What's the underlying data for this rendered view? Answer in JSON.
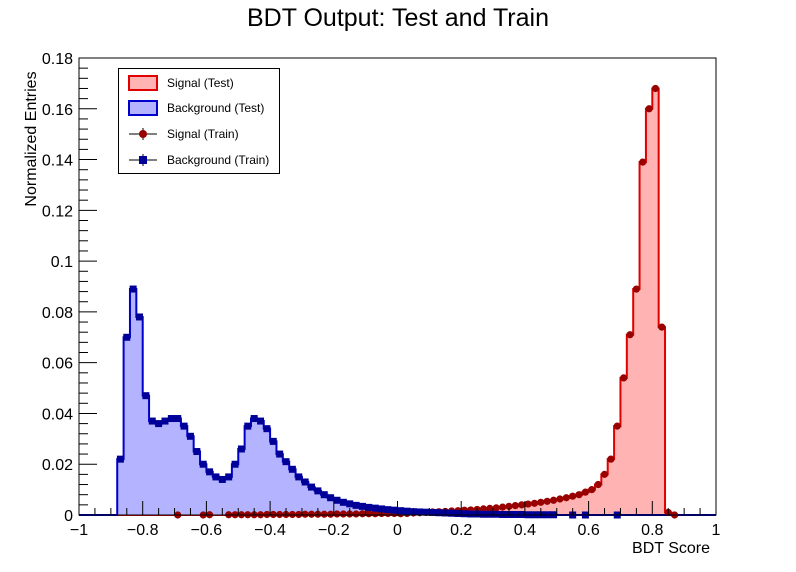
{
  "chart_data": {
    "type": "bar",
    "title": "BDT Output: Test and Train",
    "xlabel": "BDT Score",
    "ylabel": "Normalized Entries",
    "xlim": [
      -1,
      1
    ],
    "ylim": [
      0,
      0.18
    ],
    "x_ticks": [
      "−1",
      "−0.8",
      "−0.6",
      "−0.4",
      "−0.2",
      "0",
      "0.2",
      "0.4",
      "0.6",
      "0.8",
      "1"
    ],
    "y_ticks": [
      "0",
      "0.02",
      "0.04",
      "0.06",
      "0.08",
      "0.1",
      "0.12",
      "0.14",
      "0.16",
      "0.18"
    ],
    "legend_position": "top-left",
    "bins": {
      "count": 100,
      "min": -1,
      "max": 1
    },
    "series": [
      {
        "name": "Signal (Test)",
        "kind": "histogram",
        "fill": "#ffb3b3",
        "line": "#e00000",
        "values": [
          0,
          0,
          0,
          0,
          0,
          0,
          0,
          0,
          0,
          0,
          0,
          0,
          0,
          0,
          0,
          0,
          0,
          0,
          0,
          0,
          0,
          0,
          0,
          0,
          0,
          0,
          0,
          0,
          0,
          0,
          0,
          0,
          0,
          0,
          0,
          0,
          0,
          0,
          0,
          0,
          0,
          0,
          0,
          0,
          0,
          0,
          0,
          0,
          0,
          0,
          0.0005,
          0.0006,
          0.0008,
          0.0009,
          0.001,
          0.0012,
          0.0013,
          0.0014,
          0.0016,
          0.0017,
          0.0019,
          0.002,
          0.0022,
          0.0024,
          0.0026,
          0.0028,
          0.0031,
          0.0034,
          0.0037,
          0.004,
          0.0043,
          0.0046,
          0.005,
          0.0054,
          0.0058,
          0.0063,
          0.0068,
          0.0074,
          0.008,
          0.009,
          0.01,
          0.012,
          0.016,
          0.022,
          0.035,
          0.054,
          0.071,
          0.089,
          0.139,
          0.16,
          0.168,
          0.074,
          0.001,
          0,
          0,
          0,
          0,
          0,
          0,
          0
        ]
      },
      {
        "name": "Background (Test)",
        "kind": "histogram",
        "fill": "#b3b3ff",
        "line": "#0000cc",
        "values": [
          0,
          0,
          0,
          0,
          0,
          0,
          0.022,
          0.07,
          0.089,
          0.078,
          0.047,
          0.037,
          0.036,
          0.037,
          0.038,
          0.038,
          0.035,
          0.031,
          0.025,
          0.02,
          0.017,
          0.015,
          0.014,
          0.015,
          0.02,
          0.026,
          0.035,
          0.038,
          0.037,
          0.034,
          0.029,
          0.024,
          0.021,
          0.018,
          0.015,
          0.013,
          0.011,
          0.0095,
          0.008,
          0.0068,
          0.0058,
          0.005,
          0.0044,
          0.0038,
          0.0034,
          0.003,
          0.0027,
          0.0024,
          0.0021,
          0.0019,
          0.0017,
          0.0015,
          0.0013,
          0.0012,
          0.0011,
          0.001,
          0.0009,
          0.0008,
          0.0007,
          0.0006,
          0.0005,
          0.0004,
          0.0004,
          0.0003,
          0.0003,
          0.0003,
          0.0002,
          0.0002,
          0.0002,
          0.0002,
          0.0001,
          0.0001,
          0.0001,
          0.0001,
          0.0001,
          0,
          0,
          0,
          0,
          0,
          0,
          0,
          0,
          0,
          0,
          0,
          0,
          0,
          0,
          0,
          0,
          0,
          0,
          0,
          0,
          0,
          0,
          0,
          0,
          0
        ]
      },
      {
        "name": "Signal (Train)",
        "kind": "points",
        "marker": "circle",
        "color": "#990000",
        "values": [
          null,
          null,
          null,
          null,
          null,
          null,
          null,
          null,
          null,
          null,
          null,
          null,
          null,
          null,
          null,
          0,
          null,
          null,
          null,
          0,
          0.0001,
          null,
          null,
          0.0001,
          0.0001,
          0.0001,
          0.0001,
          0.0001,
          0.0001,
          0.0002,
          0.0002,
          0.0002,
          0.0002,
          0.0002,
          0.0002,
          0.0003,
          0.0003,
          0.0003,
          0.0003,
          0.0003,
          0.0004,
          0.0004,
          0.0004,
          0.0004,
          0.0005,
          0.0005,
          0.0005,
          0.0006,
          0.0006,
          0.0006,
          0.0005,
          0.0006,
          0.0008,
          0.0009,
          0.001,
          0.0012,
          0.0013,
          0.0014,
          0.0016,
          0.0017,
          0.0019,
          0.002,
          0.0022,
          0.0024,
          0.0026,
          0.0028,
          0.0031,
          0.0034,
          0.0037,
          0.004,
          0.0043,
          0.0046,
          0.005,
          0.0054,
          0.0058,
          0.0063,
          0.0068,
          0.0074,
          0.008,
          0.009,
          0.01,
          0.012,
          0.016,
          0.022,
          0.035,
          0.054,
          0.071,
          0.089,
          0.139,
          0.16,
          0.168,
          0.074,
          0.001,
          0,
          null,
          null,
          null,
          null,
          null,
          null
        ]
      },
      {
        "name": "Background (Train)",
        "kind": "points",
        "marker": "square",
        "color": "#000099",
        "values": [
          null,
          null,
          null,
          null,
          null,
          null,
          0.022,
          0.07,
          0.089,
          0.078,
          0.047,
          0.037,
          0.036,
          0.037,
          0.038,
          0.038,
          0.035,
          0.031,
          0.025,
          0.02,
          0.017,
          0.015,
          0.014,
          0.015,
          0.02,
          0.026,
          0.035,
          0.038,
          0.037,
          0.034,
          0.029,
          0.024,
          0.021,
          0.018,
          0.015,
          0.013,
          0.011,
          0.0095,
          0.008,
          0.0068,
          0.0058,
          0.005,
          0.0044,
          0.0038,
          0.0034,
          0.003,
          0.0027,
          0.0024,
          0.0021,
          0.0019,
          0.0017,
          0.0015,
          0.0013,
          0.0012,
          0.0011,
          0.001,
          0.0009,
          0.0008,
          0.0007,
          0.0006,
          0.0005,
          0.0004,
          0.0004,
          0.0003,
          0.0003,
          0.0003,
          0.0002,
          0.0002,
          0.0002,
          0.0002,
          0.0001,
          0.0001,
          0.0001,
          0.0001,
          0.0001,
          null,
          null,
          0,
          null,
          0,
          null,
          null,
          null,
          null,
          0,
          null,
          null,
          null,
          null,
          null,
          null,
          null,
          null,
          null,
          null,
          null,
          null,
          null,
          null,
          null
        ]
      }
    ]
  },
  "legend": [
    {
      "label": "Signal (Test)",
      "kind": "fill",
      "fill": "#ffb3b3",
      "line": "#e00000"
    },
    {
      "label": "Background (Test)",
      "kind": "fill",
      "fill": "#b3b3ff",
      "line": "#0000cc"
    },
    {
      "label": "Signal (Train)",
      "kind": "marker",
      "marker": "circle",
      "color": "#990000"
    },
    {
      "label": "Background (Train)",
      "kind": "marker",
      "marker": "square",
      "color": "#000099"
    }
  ]
}
